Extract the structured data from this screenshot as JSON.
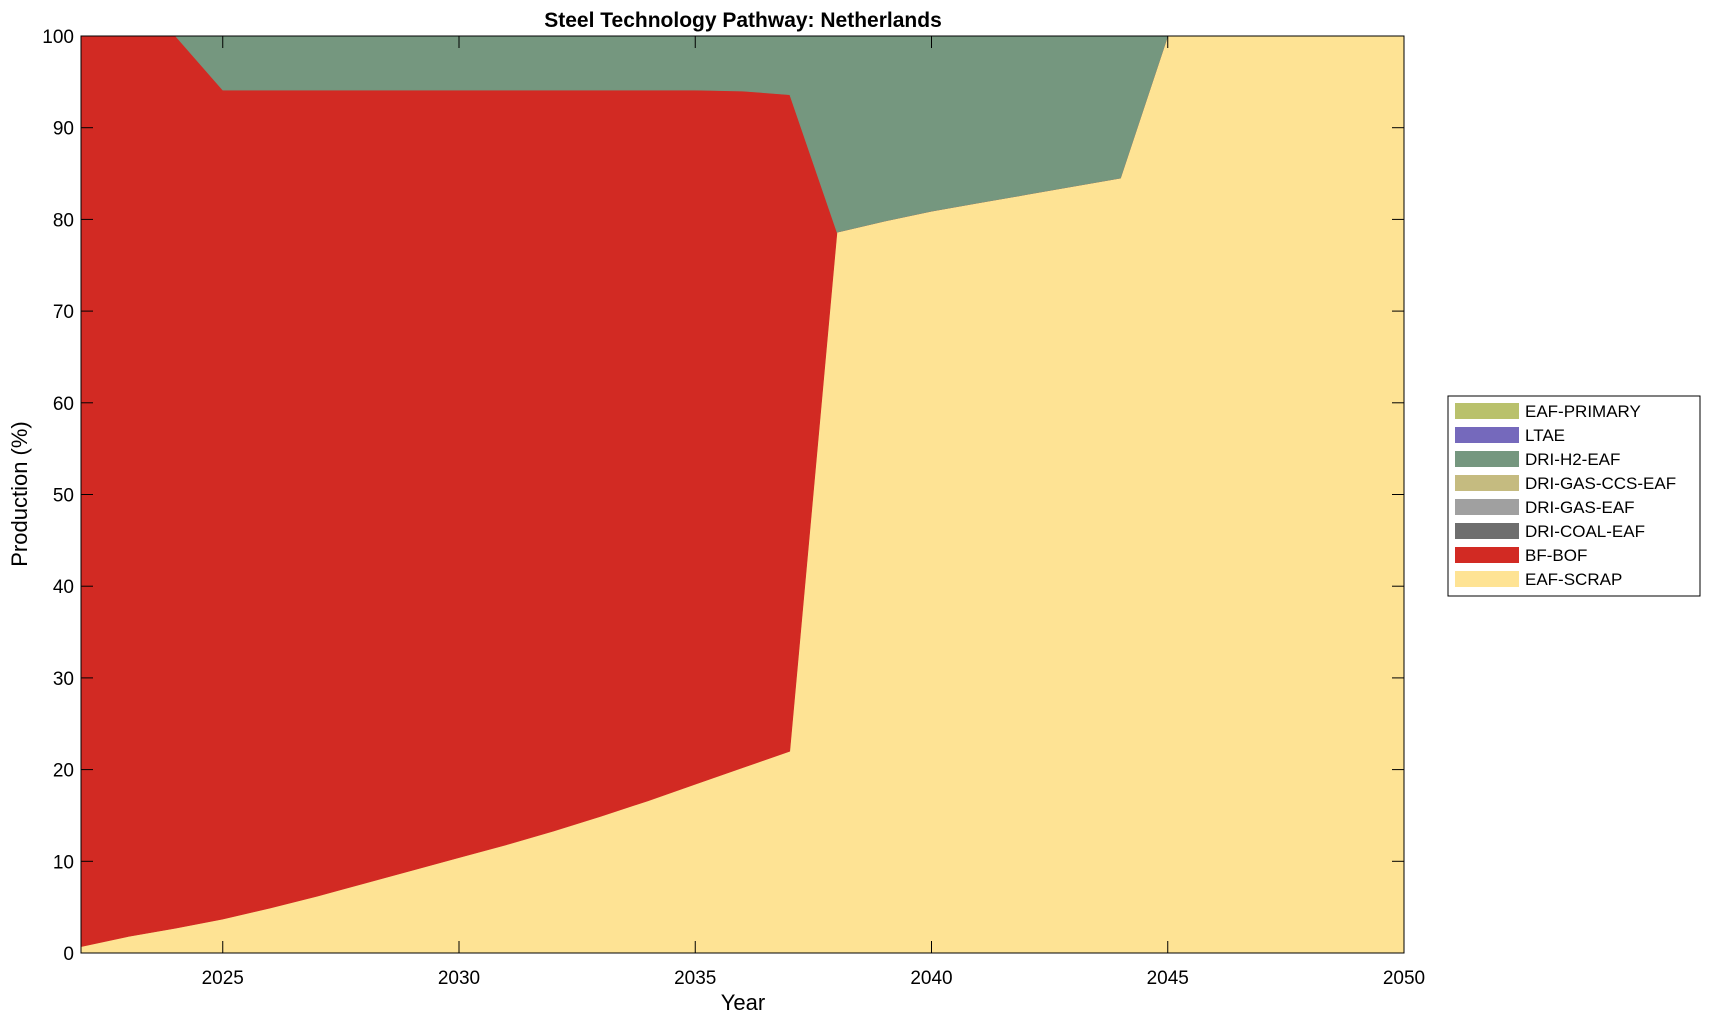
{
  "chart_data": {
    "type": "area",
    "stacked": true,
    "title": "Steel Technology Pathway: Netherlands",
    "xlabel": "Year",
    "ylabel": "Production (%)",
    "xlim": [
      2022,
      2050
    ],
    "ylim": [
      0,
      100
    ],
    "xticks": [
      2025,
      2030,
      2035,
      2040,
      2045,
      2050
    ],
    "yticks": [
      0,
      10,
      20,
      30,
      40,
      50,
      60,
      70,
      80,
      90,
      100
    ],
    "grid": false,
    "legend_position": "outside-right",
    "x": [
      2022,
      2023,
      2024,
      2025,
      2026,
      2027,
      2028,
      2029,
      2030,
      2031,
      2032,
      2033,
      2034,
      2035,
      2036,
      2037,
      2038,
      2039,
      2040,
      2041,
      2042,
      2043,
      2044,
      2045,
      2046,
      2047,
      2048,
      2049,
      2050
    ],
    "series": [
      {
        "name": "EAF-SCRAP",
        "color": "#FEE394",
        "values": [
          0.7,
          1.8,
          2.7,
          3.7,
          4.9,
          6.2,
          7.6,
          9.0,
          10.4,
          11.8,
          13.3,
          14.9,
          16.6,
          18.4,
          20.2,
          22.0,
          78.6,
          79.8,
          80.9,
          81.8,
          82.7,
          83.6,
          84.5,
          100,
          100,
          100,
          100,
          100,
          100
        ]
      },
      {
        "name": "BF-BOF",
        "color": "#D22A23",
        "values": [
          99.3,
          98.2,
          97.3,
          90.4,
          89.2,
          87.9,
          86.5,
          85.1,
          83.7,
          82.3,
          80.8,
          79.2,
          77.5,
          75.7,
          73.8,
          71.6,
          0,
          0,
          0,
          0,
          0,
          0,
          0,
          0,
          0,
          0,
          0,
          0,
          0
        ]
      },
      {
        "name": "DRI-COAL-EAF",
        "color": "#6E6E6E",
        "values": [
          0,
          0,
          0,
          0,
          0,
          0,
          0,
          0,
          0,
          0,
          0,
          0,
          0,
          0,
          0,
          0,
          0,
          0,
          0,
          0,
          0,
          0,
          0,
          0,
          0,
          0,
          0,
          0,
          0
        ]
      },
      {
        "name": "DRI-GAS-EAF",
        "color": "#A0A0A0",
        "values": [
          0,
          0,
          0,
          0,
          0,
          0,
          0,
          0,
          0,
          0,
          0,
          0,
          0,
          0,
          0,
          0,
          0,
          0,
          0,
          0,
          0,
          0,
          0,
          0,
          0,
          0,
          0,
          0,
          0
        ]
      },
      {
        "name": "DRI-GAS-CCS-EAF",
        "color": "#C5BB80",
        "values": [
          0,
          0,
          0,
          0,
          0,
          0,
          0,
          0,
          0,
          0,
          0,
          0,
          0,
          0,
          0,
          0,
          0,
          0,
          0,
          0,
          0,
          0,
          0,
          0,
          0,
          0,
          0,
          0,
          0
        ]
      },
      {
        "name": "DRI-H2-EAF",
        "color": "#75977F",
        "values": [
          0,
          0,
          0,
          5.9,
          5.9,
          5.9,
          5.9,
          5.9,
          5.9,
          5.9,
          5.9,
          5.9,
          5.9,
          5.9,
          6.0,
          6.4,
          21.4,
          20.2,
          19.1,
          18.2,
          17.3,
          16.4,
          15.5,
          0,
          0,
          0,
          0,
          0,
          0
        ]
      },
      {
        "name": "LTAE",
        "color": "#7569BC",
        "values": [
          0,
          0,
          0,
          0,
          0,
          0,
          0,
          0,
          0,
          0,
          0,
          0,
          0,
          0,
          0,
          0,
          0,
          0,
          0,
          0,
          0,
          0,
          0,
          0,
          0,
          0,
          0,
          0,
          0
        ]
      },
      {
        "name": "EAF-PRIMARY",
        "color": "#B9C16C",
        "values": [
          0,
          0,
          0,
          0,
          0,
          0,
          0,
          0,
          0,
          0,
          0,
          0,
          0,
          0,
          0,
          0,
          0,
          0,
          0,
          0,
          0,
          0,
          0,
          0,
          0,
          0,
          0,
          0,
          0
        ]
      }
    ],
    "legend_order": [
      "EAF-PRIMARY",
      "LTAE",
      "DRI-H2-EAF",
      "DRI-GAS-CCS-EAF",
      "DRI-GAS-EAF",
      "DRI-COAL-EAF",
      "BF-BOF",
      "EAF-SCRAP"
    ]
  }
}
